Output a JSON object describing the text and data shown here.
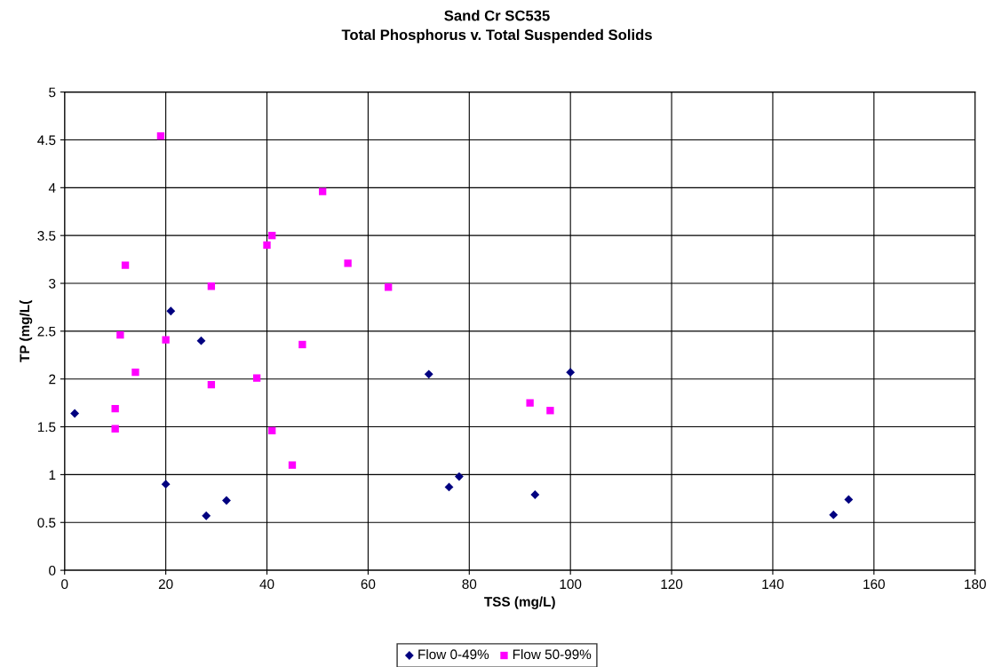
{
  "chart_data": {
    "type": "scatter",
    "title": "Sand Cr SC535\nTotal Phosphorus v. Total Suspended Solids",
    "xlabel": "TSS (mg/L)",
    "ylabel": "TP (mg/L(",
    "xlim": [
      0,
      180
    ],
    "xticks": [
      0,
      20,
      40,
      60,
      80,
      100,
      120,
      140,
      160,
      180
    ],
    "ylim": [
      0,
      5
    ],
    "yticks": [
      0,
      0.5,
      1,
      1.5,
      2,
      2.5,
      3,
      3.5,
      4,
      4.5,
      5
    ],
    "grid": true,
    "legend": "bottom",
    "series": [
      {
        "name": "Flow 0-49%",
        "color": "#000080",
        "marker": "diamond",
        "x": [
          2,
          21,
          27,
          20,
          28,
          32,
          72,
          76,
          78,
          93,
          100,
          152,
          155
        ],
        "values": [
          1.64,
          2.71,
          2.4,
          0.9,
          0.57,
          0.73,
          2.05,
          0.87,
          0.98,
          0.79,
          2.07,
          0.58,
          0.74
        ]
      },
      {
        "name": "Flow 50-99%",
        "color": "#ff00ff",
        "marker": "square",
        "x": [
          19,
          12,
          11,
          14,
          10,
          10,
          20,
          29,
          29,
          38,
          40,
          41,
          41,
          45,
          47,
          51,
          56,
          64,
          92,
          96
        ],
        "values": [
          4.54,
          3.19,
          2.46,
          2.07,
          1.69,
          1.48,
          2.41,
          2.97,
          1.94,
          2.01,
          3.4,
          3.5,
          1.46,
          1.1,
          2.36,
          3.96,
          3.21,
          2.96,
          1.75,
          1.67
        ]
      }
    ]
  }
}
